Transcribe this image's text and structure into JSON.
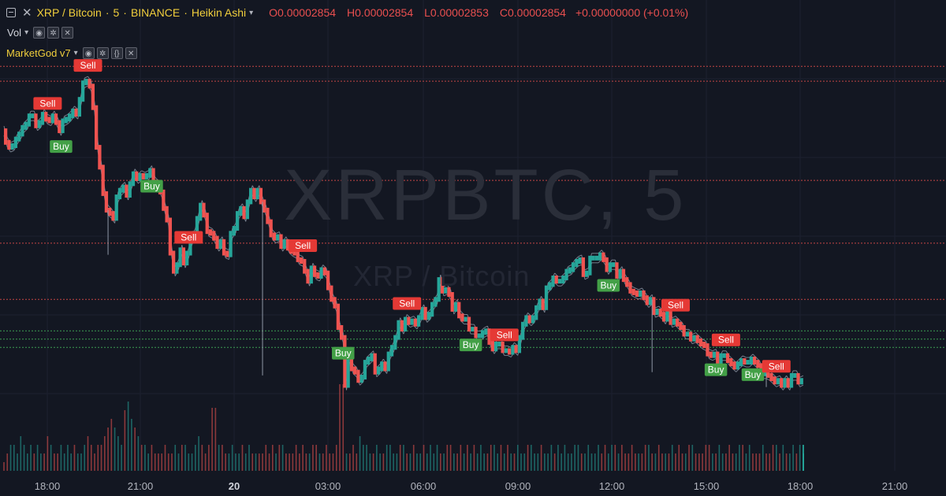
{
  "header": {
    "collapse_icon": "collapse-icon",
    "close_icon": "close-icon",
    "symbol": "XRP / Bitcoin",
    "interval": "5",
    "exchange": "BINANCE",
    "chart_style": "Heikin Ashi",
    "o_label": "O",
    "o_value": "0.00002854",
    "h_label": "H",
    "h_value": "0.00002854",
    "l_label": "L",
    "l_value": "0.00002853",
    "c_label": "C",
    "c_value": "0.00002854",
    "change": "+0.00000000 (+0.01%)"
  },
  "indicators": {
    "volume": {
      "name": "Vol",
      "buttons": [
        "eye-icon",
        "gear-icon",
        "close-icon"
      ]
    },
    "marketgod": {
      "name": "MarketGod v7",
      "buttons": [
        "eye-icon",
        "gear-icon",
        "source-code-icon",
        "close-icon"
      ]
    }
  },
  "watermark": {
    "main": "XRPBTC, 5",
    "sub": "XRP / Bitcoin"
  },
  "colors": {
    "up": "#26a69a",
    "down": "#ef5350",
    "buy": "#43a047",
    "sell": "#e53935",
    "red_line": "#c54645",
    "green_line": "#3c9e52"
  },
  "chart_data": {
    "type": "line",
    "style": "heikin-ashi",
    "grid": true,
    "x_ticks": [
      "18:00",
      "21:00",
      "20",
      "03:00",
      "06:00",
      "09:00",
      "12:00",
      "15:00",
      "18:00",
      "21:00"
    ],
    "price_index": [
      [
        0,
        5.9
      ],
      [
        2,
        5.2
      ],
      [
        4,
        4.9
      ],
      [
        6,
        5.0
      ],
      [
        8,
        5.4
      ],
      [
        10,
        5.7
      ],
      [
        12,
        6.1
      ],
      [
        14,
        6.3
      ],
      [
        16,
        6.8
      ],
      [
        18,
        6.8
      ],
      [
        20,
        6.2
      ],
      [
        22,
        6.4
      ],
      [
        24,
        6.9
      ],
      [
        26,
        6.6
      ],
      [
        28,
        6.5
      ],
      [
        30,
        6.8
      ],
      [
        32,
        6.4
      ],
      [
        34,
        5.9
      ],
      [
        36,
        6.5
      ],
      [
        38,
        6.6
      ],
      [
        40,
        6.8
      ],
      [
        42,
        7.1
      ],
      [
        44,
        6.9
      ],
      [
        46,
        7.8
      ],
      [
        48,
        8.8
      ],
      [
        50,
        8.9
      ],
      [
        52,
        8.6
      ],
      [
        54,
        7.3
      ],
      [
        56,
        4.9
      ],
      [
        58,
        3.7
      ],
      [
        60,
        2.1
      ],
      [
        62,
        1.1
      ],
      [
        64,
        0.9
      ],
      [
        66,
        0.6
      ],
      [
        68,
        1.9
      ],
      [
        70,
        2.3
      ],
      [
        72,
        2.5
      ],
      [
        74,
        2.0
      ],
      [
        76,
        2.7
      ],
      [
        78,
        3.3
      ],
      [
        80,
        3.0
      ],
      [
        82,
        3.2
      ],
      [
        84,
        3.1
      ],
      [
        86,
        3.2
      ],
      [
        88,
        3.5
      ],
      [
        90,
        2.8
      ],
      [
        92,
        2.6
      ],
      [
        94,
        2.2
      ],
      [
        96,
        1.2
      ],
      [
        98,
        0.5
      ],
      [
        100,
        -1.5
      ],
      [
        102,
        -2.6
      ],
      [
        104,
        -2.2
      ],
      [
        106,
        -1.3
      ],
      [
        108,
        -2.1
      ],
      [
        110,
        -1.5
      ],
      [
        112,
        -0.7
      ],
      [
        114,
        -0.3
      ],
      [
        116,
        0.6
      ],
      [
        118,
        1.4
      ],
      [
        120,
        0.8
      ],
      [
        122,
        -0.2
      ],
      [
        124,
        -0.3
      ],
      [
        126,
        -0.6
      ],
      [
        128,
        -1.1
      ],
      [
        130,
        -0.8
      ],
      [
        132,
        -1.5
      ],
      [
        134,
        -1.6
      ],
      [
        136,
        -0.3
      ],
      [
        138,
        0.0
      ],
      [
        140,
        0.9
      ],
      [
        142,
        1.2
      ],
      [
        144,
        0.7
      ],
      [
        146,
        1.6
      ],
      [
        148,
        2.3
      ],
      [
        150,
        1.9
      ],
      [
        152,
        2.3
      ],
      [
        154,
        1.6
      ],
      [
        156,
        1.1
      ],
      [
        158,
        0.4
      ],
      [
        160,
        -0.4
      ],
      [
        162,
        -0.6
      ],
      [
        164,
        -0.5
      ],
      [
        166,
        -1.1
      ],
      [
        168,
        -0.8
      ],
      [
        170,
        -1.2
      ],
      [
        172,
        -1.4
      ],
      [
        174,
        -1.5
      ],
      [
        176,
        -1.9
      ],
      [
        178,
        -2.0
      ],
      [
        180,
        -2.6
      ],
      [
        182,
        -3.2
      ],
      [
        184,
        -2.4
      ],
      [
        186,
        -2.8
      ],
      [
        188,
        -2.9
      ],
      [
        190,
        -2.5
      ],
      [
        192,
        -2.7
      ],
      [
        194,
        -3.6
      ],
      [
        196,
        -4.3
      ],
      [
        198,
        -4.7
      ],
      [
        200,
        -6.0
      ],
      [
        202,
        -6.6
      ],
      [
        204,
        -9.5
      ],
      [
        206,
        -7.8
      ],
      [
        208,
        -8.5
      ],
      [
        210,
        -8.7
      ],
      [
        212,
        -9.2
      ],
      [
        214,
        -9.0
      ],
      [
        216,
        -8.1
      ],
      [
        218,
        -7.9
      ],
      [
        220,
        -7.7
      ],
      [
        222,
        -8.7
      ],
      [
        224,
        -8.5
      ],
      [
        226,
        -8.2
      ],
      [
        228,
        -8.5
      ],
      [
        230,
        -7.6
      ],
      [
        232,
        -7.2
      ],
      [
        234,
        -6.6
      ],
      [
        236,
        -5.7
      ],
      [
        238,
        -6.1
      ],
      [
        240,
        -5.5
      ],
      [
        242,
        -5.7
      ],
      [
        244,
        -5.6
      ],
      [
        246,
        -5.8
      ],
      [
        248,
        -5.4
      ],
      [
        250,
        -4.9
      ],
      [
        252,
        -5.4
      ],
      [
        254,
        -5.2
      ],
      [
        256,
        -4.6
      ],
      [
        258,
        -4.3
      ],
      [
        260,
        -3.1
      ],
      [
        262,
        -3.8
      ],
      [
        264,
        -3.7
      ],
      [
        266,
        -4.0
      ],
      [
        268,
        -4.9
      ],
      [
        270,
        -4.6
      ],
      [
        272,
        -5.3
      ],
      [
        274,
        -5.5
      ],
      [
        276,
        -5.5
      ],
      [
        278,
        -6.1
      ],
      [
        280,
        -6.1
      ],
      [
        282,
        -6.5
      ],
      [
        284,
        -6.5
      ],
      [
        286,
        -6.3
      ],
      [
        288,
        -6.2
      ],
      [
        290,
        -6.9
      ],
      [
        292,
        -7.3
      ],
      [
        294,
        -7.0
      ],
      [
        296,
        -7.0
      ],
      [
        298,
        -7.4
      ],
      [
        300,
        -7.4
      ],
      [
        302,
        -7.5
      ],
      [
        304,
        -7.2
      ],
      [
        306,
        -7.4
      ],
      [
        308,
        -6.6
      ],
      [
        310,
        -5.8
      ],
      [
        312,
        -5.4
      ],
      [
        314,
        -5.6
      ],
      [
        316,
        -5.4
      ],
      [
        318,
        -4.8
      ],
      [
        320,
        -4.4
      ],
      [
        322,
        -4.8
      ],
      [
        324,
        -3.6
      ],
      [
        326,
        -3.4
      ],
      [
        328,
        -3.0
      ],
      [
        330,
        -3.2
      ],
      [
        332,
        -3.2
      ],
      [
        334,
        -3.0
      ],
      [
        336,
        -2.6
      ],
      [
        338,
        -2.5
      ],
      [
        340,
        -2.2
      ],
      [
        342,
        -2.0
      ],
      [
        344,
        -1.9
      ],
      [
        346,
        -2.8
      ],
      [
        348,
        -2.7
      ],
      [
        350,
        -1.8
      ],
      [
        352,
        -1.8
      ],
      [
        354,
        -1.8
      ],
      [
        356,
        -1.6
      ],
      [
        358,
        -1.9
      ],
      [
        360,
        -2.5
      ],
      [
        362,
        -2.2
      ],
      [
        364,
        -2.2
      ],
      [
        366,
        -2.9
      ],
      [
        368,
        -2.6
      ],
      [
        370,
        -3.1
      ],
      [
        372,
        -3.4
      ],
      [
        374,
        -3.8
      ],
      [
        376,
        -3.9
      ],
      [
        378,
        -4.0
      ],
      [
        380,
        -3.9
      ],
      [
        382,
        -4.2
      ],
      [
        384,
        -4.5
      ],
      [
        386,
        -4.3
      ],
      [
        388,
        -5.1
      ],
      [
        390,
        -5.0
      ],
      [
        392,
        -5.2
      ],
      [
        394,
        -5.5
      ],
      [
        396,
        -5.0
      ],
      [
        398,
        -5.7
      ],
      [
        400,
        -5.6
      ],
      [
        402,
        -5.8
      ],
      [
        404,
        -6.0
      ],
      [
        406,
        -6.4
      ],
      [
        408,
        -6.4
      ],
      [
        410,
        -6.7
      ],
      [
        412,
        -6.6
      ],
      [
        414,
        -6.8
      ],
      [
        416,
        -7.0
      ],
      [
        418,
        -7.1
      ],
      [
        420,
        -7.6
      ],
      [
        422,
        -7.7
      ],
      [
        424,
        -7.6
      ],
      [
        426,
        -8.1
      ],
      [
        428,
        -7.7
      ],
      [
        430,
        -7.7
      ],
      [
        432,
        -8.0
      ],
      [
        434,
        -8.2
      ],
      [
        436,
        -8.4
      ],
      [
        438,
        -8.2
      ],
      [
        440,
        -8.0
      ],
      [
        442,
        -8.1
      ],
      [
        444,
        -8.1
      ],
      [
        446,
        -7.9
      ],
      [
        448,
        -8.1
      ],
      [
        450,
        -8.3
      ],
      [
        452,
        -8.8
      ],
      [
        454,
        -8.8
      ],
      [
        456,
        -8.9
      ],
      [
        458,
        -9.1
      ],
      [
        460,
        -9.3
      ],
      [
        462,
        -9.2
      ],
      [
        464,
        -9.5
      ],
      [
        466,
        -9.2
      ],
      [
        468,
        -9.5
      ],
      [
        470,
        -8.9
      ],
      [
        472,
        -8.9
      ],
      [
        474,
        -9.3
      ],
      [
        476,
        -9.2
      ]
    ],
    "buy_signals": [
      [
        34,
        5.9
      ],
      [
        88,
        3.5
      ],
      [
        202,
        -6.6
      ],
      [
        278,
        -6.1
      ],
      [
        360,
        -2.5
      ],
      [
        424,
        -7.6
      ],
      [
        446,
        -7.9
      ]
    ],
    "sell_signals": [
      [
        26,
        6.6
      ],
      [
        50,
        8.9
      ],
      [
        110,
        -1.5
      ],
      [
        178,
        -2.0
      ],
      [
        240,
        -5.5
      ],
      [
        298,
        -7.4
      ],
      [
        400,
        -5.6
      ],
      [
        430,
        -7.7
      ],
      [
        460,
        -9.3
      ]
    ],
    "red_levels": [
      9.8,
      8.9,
      2.9,
      -0.9,
      -4.3
    ],
    "green_levels": [
      -6.2,
      -6.7,
      -7.2
    ],
    "volume": [
      1,
      2,
      3,
      3,
      2,
      4,
      3,
      2,
      3,
      2,
      3,
      2,
      2,
      4,
      3,
      2,
      2,
      3,
      2,
      3,
      2,
      3,
      2,
      2,
      3,
      4,
      3,
      2,
      3,
      3,
      4,
      5,
      6,
      5,
      4,
      3,
      7,
      8,
      6,
      5,
      4,
      3,
      3,
      2,
      3,
      2,
      2,
      2,
      3,
      2,
      2,
      3,
      2,
      3,
      3,
      2,
      2,
      3,
      4,
      3,
      2,
      3,
      2,
      2,
      3,
      3,
      2,
      2,
      3,
      2,
      2,
      3,
      2,
      3,
      2,
      2,
      2,
      2,
      3,
      2,
      3,
      2,
      3,
      3,
      2,
      2,
      2,
      3,
      2,
      3,
      2,
      2,
      3,
      3,
      2,
      2,
      3,
      2,
      2,
      3,
      4,
      3,
      2,
      2,
      3,
      2,
      4,
      3,
      3,
      2,
      2,
      3,
      2,
      2,
      3,
      3,
      2,
      2,
      3,
      3,
      2,
      2,
      3,
      2,
      2,
      3,
      2,
      3,
      2,
      3,
      2,
      2,
      3,
      3,
      2,
      2,
      3,
      2,
      3,
      2,
      3,
      2,
      3,
      2,
      2,
      3,
      3,
      2,
      3,
      2,
      3,
      2,
      2,
      3,
      2,
      2,
      3,
      3,
      2,
      2,
      3,
      2,
      2,
      3,
      2,
      3,
      2,
      3,
      2,
      2,
      3,
      3,
      2,
      2,
      3,
      2,
      2,
      3,
      2,
      3,
      2,
      3,
      3,
      2,
      3,
      2,
      2,
      3,
      2,
      2,
      2,
      3,
      3,
      2,
      2,
      3,
      2,
      2,
      2,
      3,
      2,
      3,
      2,
      2,
      3,
      3,
      2,
      2,
      2,
      3,
      3,
      2,
      2,
      3,
      2,
      2,
      3,
      2,
      2,
      3,
      3,
      2,
      3,
      2,
      2,
      2,
      3,
      2,
      2,
      3,
      3,
      2,
      3,
      2,
      2,
      3,
      2,
      3,
      3,
      2,
      2,
      2,
      3,
      2,
      2,
      3,
      2,
      2,
      3,
      2,
      2,
      3
    ]
  }
}
